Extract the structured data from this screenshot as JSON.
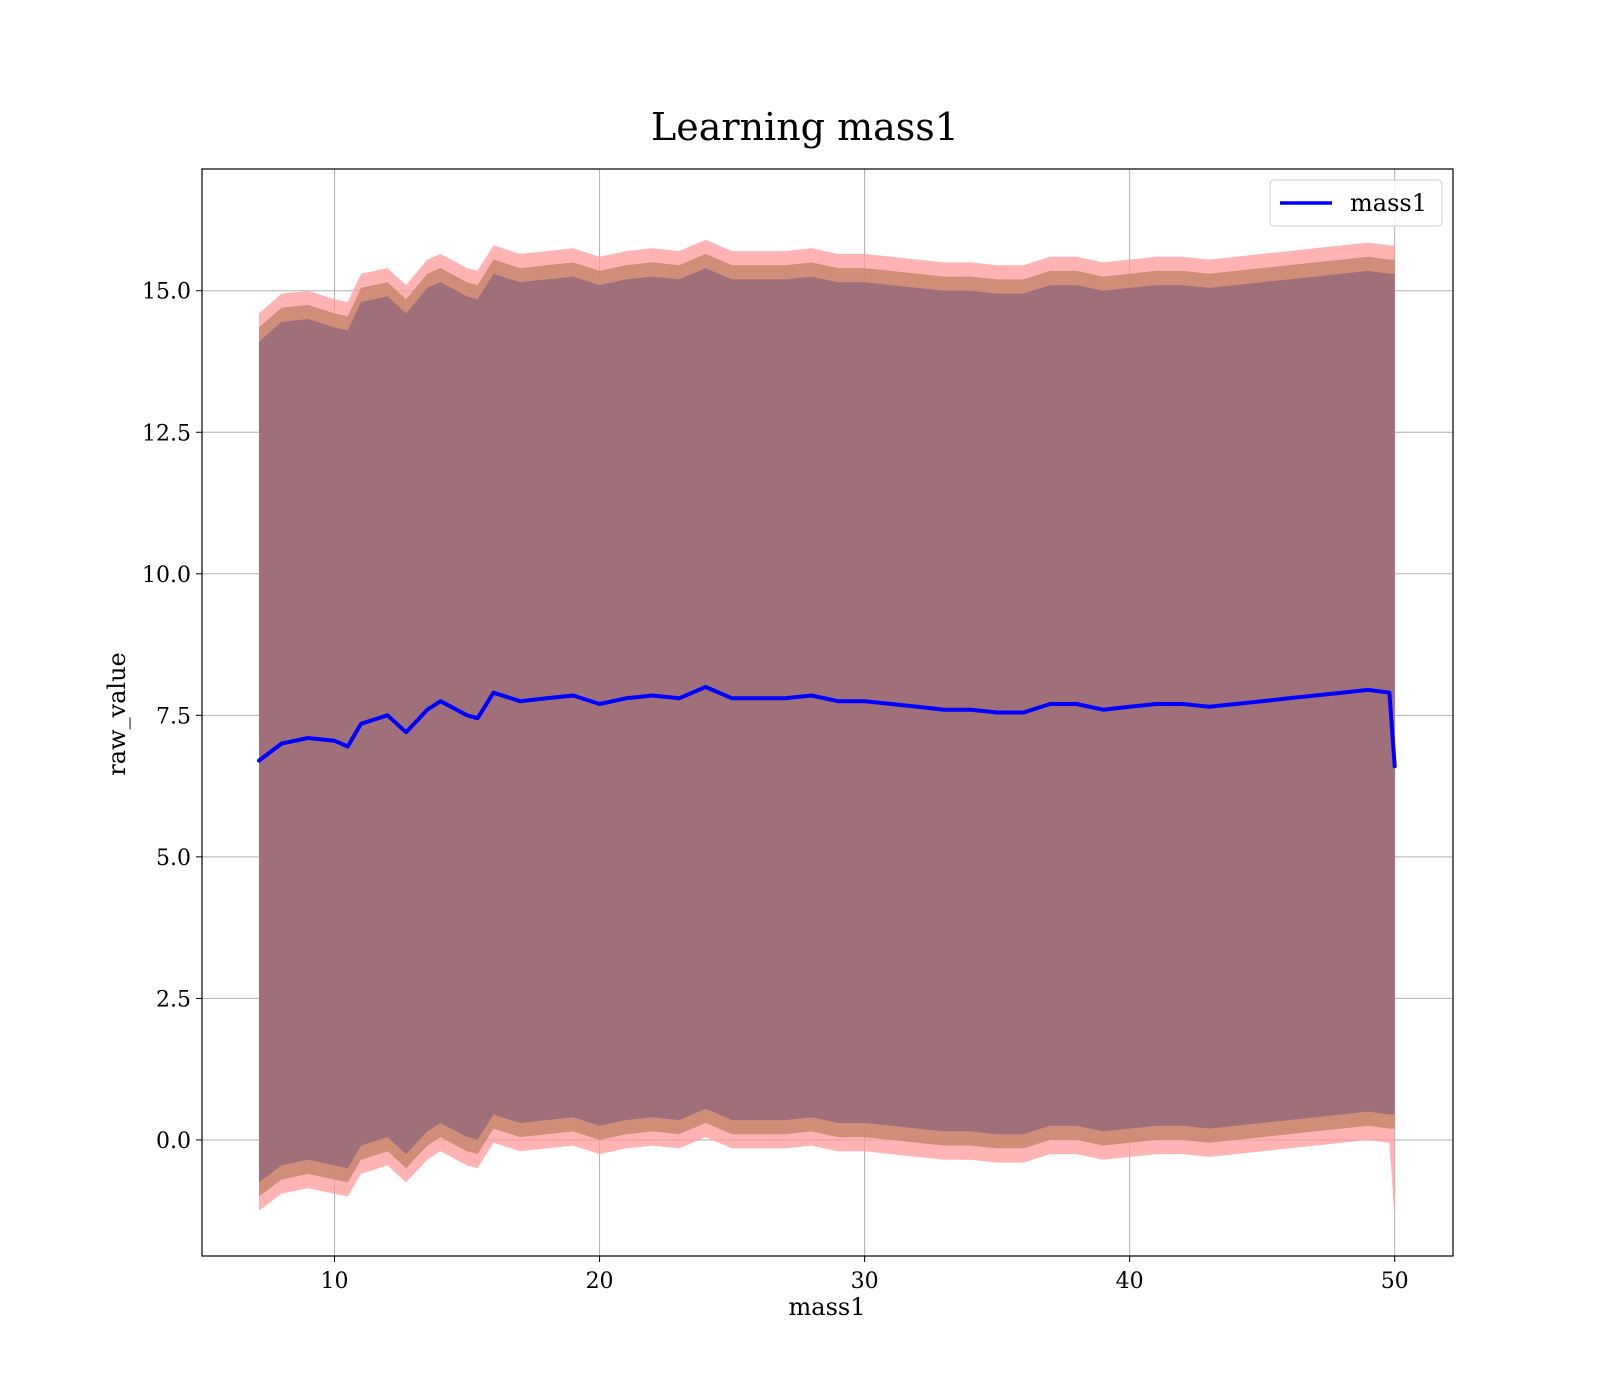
{
  "chart_data": {
    "type": "line",
    "title": "Learning mass1",
    "xlabel": "mass1",
    "ylabel": "raw_value",
    "xlim": [
      5.0,
      52.2
    ],
    "ylim": [
      -2.05,
      17.15
    ],
    "x_ticks": [
      10,
      20,
      30,
      40,
      50
    ],
    "x_tick_labels": [
      "10",
      "20",
      "30",
      "40",
      "50"
    ],
    "y_ticks": [
      0.0,
      2.5,
      5.0,
      7.5,
      10.0,
      12.5,
      15.0
    ],
    "y_tick_labels": [
      "0.0",
      "2.5",
      "5.0",
      "7.5",
      "10.0",
      "12.5",
      "15.0"
    ],
    "grid": true,
    "legend": {
      "position": "top-right",
      "entries": [
        "mass1"
      ]
    },
    "colors": {
      "line": "#0000ff",
      "outer_band": "#ff9999",
      "middle_band": "#c8876e",
      "inner_band": "#a0707a",
      "grid": "#b0b0b0"
    },
    "x": [
      7.15,
      8.0,
      9.0,
      10.0,
      10.5,
      11.0,
      12.0,
      12.7,
      13.5,
      14.0,
      15.0,
      15.4,
      16.0,
      17.0,
      18.0,
      19.0,
      20.0,
      21.0,
      22.0,
      23.0,
      24.0,
      25.0,
      26.0,
      27.0,
      28.0,
      29.0,
      30.0,
      31.0,
      32.0,
      33.0,
      34.0,
      35.0,
      36.0,
      37.0,
      38.0,
      39.0,
      40.0,
      41.0,
      42.0,
      43.0,
      44.0,
      45.0,
      46.0,
      47.0,
      48.0,
      49.0,
      49.8,
      50.0
    ],
    "series": [
      {
        "name": "mass1",
        "values": [
          6.7,
          7.0,
          7.1,
          7.05,
          6.95,
          7.35,
          7.5,
          7.2,
          7.6,
          7.75,
          7.5,
          7.45,
          7.9,
          7.75,
          7.8,
          7.85,
          7.7,
          7.8,
          7.85,
          7.8,
          8.0,
          7.8,
          7.8,
          7.8,
          7.85,
          7.75,
          7.75,
          7.7,
          7.65,
          7.6,
          7.6,
          7.55,
          7.55,
          7.7,
          7.7,
          7.6,
          7.65,
          7.7,
          7.7,
          7.65,
          7.7,
          7.75,
          7.8,
          7.85,
          7.9,
          7.95,
          7.9,
          6.6
        ]
      }
    ],
    "bands": [
      {
        "upper": [
          14.6,
          14.95,
          15.0,
          14.85,
          14.8,
          15.3,
          15.4,
          15.1,
          15.55,
          15.65,
          15.4,
          15.35,
          15.8,
          15.65,
          15.7,
          15.75,
          15.6,
          15.7,
          15.75,
          15.7,
          15.9,
          15.7,
          15.7,
          15.7,
          15.75,
          15.65,
          15.65,
          15.6,
          15.55,
          15.5,
          15.5,
          15.45,
          15.45,
          15.6,
          15.6,
          15.5,
          15.55,
          15.6,
          15.6,
          15.55,
          15.6,
          15.65,
          15.7,
          15.75,
          15.8,
          15.85,
          15.8,
          15.8
        ],
        "lower": [
          -1.25,
          -0.95,
          -0.85,
          -0.95,
          -1.0,
          -0.6,
          -0.45,
          -0.75,
          -0.35,
          -0.2,
          -0.45,
          -0.5,
          -0.05,
          -0.2,
          -0.15,
          -0.1,
          -0.25,
          -0.15,
          -0.1,
          -0.15,
          0.05,
          -0.15,
          -0.15,
          -0.15,
          -0.1,
          -0.2,
          -0.2,
          -0.25,
          -0.3,
          -0.35,
          -0.35,
          -0.4,
          -0.4,
          -0.25,
          -0.25,
          -0.35,
          -0.3,
          -0.25,
          -0.25,
          -0.3,
          -0.25,
          -0.2,
          -0.15,
          -0.1,
          -0.05,
          0.0,
          -0.05,
          -1.4
        ]
      },
      {
        "upper": [
          14.35,
          14.7,
          14.75,
          14.6,
          14.55,
          15.05,
          15.15,
          14.85,
          15.3,
          15.4,
          15.15,
          15.1,
          15.55,
          15.4,
          15.45,
          15.5,
          15.35,
          15.45,
          15.5,
          15.45,
          15.65,
          15.45,
          15.45,
          15.45,
          15.5,
          15.4,
          15.4,
          15.35,
          15.3,
          15.25,
          15.25,
          15.2,
          15.2,
          15.35,
          15.35,
          15.25,
          15.3,
          15.35,
          15.35,
          15.3,
          15.35,
          15.4,
          15.45,
          15.5,
          15.55,
          15.6,
          15.55,
          15.55
        ],
        "lower": [
          -1.0,
          -0.7,
          -0.6,
          -0.7,
          -0.75,
          -0.35,
          -0.2,
          -0.5,
          -0.1,
          0.05,
          -0.2,
          -0.25,
          0.2,
          0.05,
          0.1,
          0.15,
          0.0,
          0.1,
          0.15,
          0.1,
          0.3,
          0.1,
          0.1,
          0.1,
          0.15,
          0.05,
          0.05,
          0.0,
          -0.05,
          -0.1,
          -0.1,
          -0.15,
          -0.15,
          0.0,
          0.0,
          -0.1,
          -0.05,
          0.0,
          0.0,
          -0.05,
          0.0,
          0.05,
          0.1,
          0.15,
          0.2,
          0.25,
          0.2,
          0.2
        ]
      },
      {
        "upper": [
          14.1,
          14.45,
          14.5,
          14.35,
          14.3,
          14.8,
          14.9,
          14.6,
          15.05,
          15.15,
          14.9,
          14.85,
          15.3,
          15.15,
          15.2,
          15.25,
          15.1,
          15.2,
          15.25,
          15.2,
          15.4,
          15.2,
          15.2,
          15.2,
          15.25,
          15.15,
          15.15,
          15.1,
          15.05,
          15.0,
          15.0,
          14.95,
          14.95,
          15.1,
          15.1,
          15.0,
          15.05,
          15.1,
          15.1,
          15.05,
          15.1,
          15.15,
          15.2,
          15.25,
          15.3,
          15.35,
          15.3,
          15.3
        ],
        "lower": [
          -0.75,
          -0.45,
          -0.35,
          -0.45,
          -0.5,
          -0.1,
          0.05,
          -0.25,
          0.15,
          0.3,
          0.05,
          0.0,
          0.45,
          0.3,
          0.35,
          0.4,
          0.25,
          0.35,
          0.4,
          0.35,
          0.55,
          0.35,
          0.35,
          0.35,
          0.4,
          0.3,
          0.3,
          0.25,
          0.2,
          0.15,
          0.15,
          0.1,
          0.1,
          0.25,
          0.25,
          0.15,
          0.2,
          0.25,
          0.25,
          0.2,
          0.25,
          0.3,
          0.35,
          0.4,
          0.45,
          0.5,
          0.45,
          0.45
        ]
      }
    ]
  }
}
